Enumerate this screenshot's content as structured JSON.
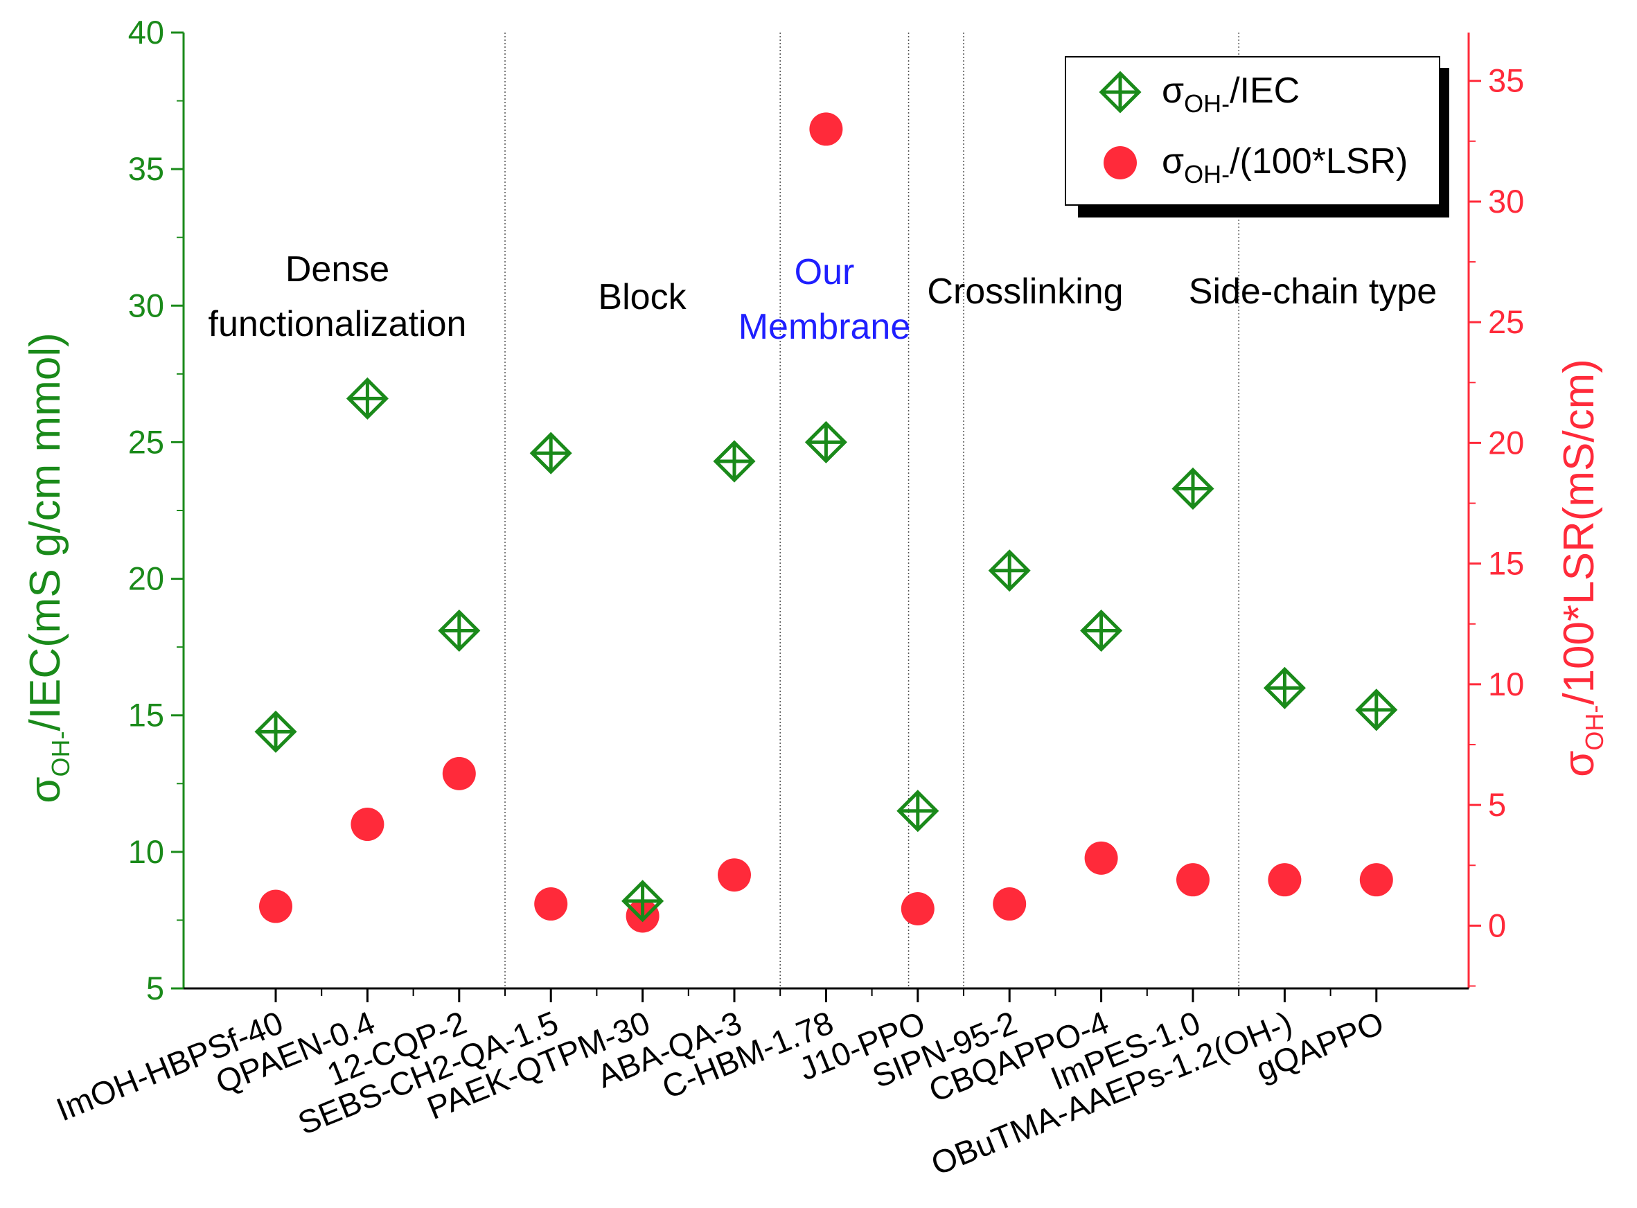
{
  "chart_data": {
    "type": "scatter",
    "categories": [
      "ImOH-HBPSf-40",
      "QPAEN-0.4",
      "12-CQP-2",
      "SEBS-CH2-QA-1.5",
      "PAEK-QTPM-30",
      "ABA-QA-3",
      "C-HBM-1.78",
      "J10-PPO",
      "SIPN-95-2",
      "CBQAPPO-4",
      "ImPES-1.0",
      "OBuTMA-AAEPs-1.2(OH-)",
      "gQAPPO"
    ],
    "series": [
      {
        "name": "σOH-/IEC",
        "axis": "left",
        "marker": "crossed-diamond",
        "color": "#1a8a1a",
        "values": [
          14.4,
          26.6,
          18.1,
          24.6,
          8.2,
          24.3,
          25.0,
          11.5,
          20.3,
          18.1,
          23.3,
          16.0,
          15.2
        ]
      },
      {
        "name": "σOH-/(100*LSR)",
        "axis": "right",
        "marker": "filled-circle",
        "color": "#ff2a3a",
        "values": [
          0.8,
          4.2,
          6.3,
          0.9,
          0.4,
          2.1,
          33.0,
          0.7,
          0.9,
          2.8,
          1.9,
          1.9,
          1.9
        ]
      }
    ],
    "y_left": {
      "label": {
        "main": "σ",
        "sub": "OH-",
        "rest": "/IEC(mS g/cm mmol)"
      },
      "ylim": [
        5,
        40
      ],
      "ticks": [
        5,
        10,
        15,
        20,
        25,
        30,
        35,
        40
      ],
      "color": "#1a8a1a"
    },
    "y_right": {
      "label": {
        "main": "σ",
        "sub": "OH-",
        "rest": "/100*LSR(mS/cm)"
      },
      "ylim": [
        -2.6,
        37
      ],
      "ticks": [
        0,
        5,
        10,
        15,
        20,
        25,
        30,
        35
      ],
      "color": "#ff2a3a"
    },
    "groups": [
      {
        "lines": [
          "Dense",
          "functionalization"
        ],
        "color": "#000000"
      },
      {
        "lines": [
          "Block"
        ],
        "color": "#000000"
      },
      {
        "lines": [
          "Our",
          "Membrane"
        ],
        "color": "#1f1fff"
      },
      {
        "lines": [
          "Crosslinking"
        ],
        "color": "#000000"
      },
      {
        "lines": [
          "Side-chain type"
        ],
        "color": "#000000"
      }
    ],
    "separators_after_index": [
      2.5,
      5.5,
      6.9,
      7.5,
      10.5
    ],
    "legend": {
      "placement": "top-right",
      "entries": [
        {
          "main": "σ",
          "sub": "OH-",
          "rest": "/IEC"
        },
        {
          "main": "σ",
          "sub": "OH-",
          "rest": "/(100*LSR)"
        }
      ]
    },
    "grid": false
  }
}
